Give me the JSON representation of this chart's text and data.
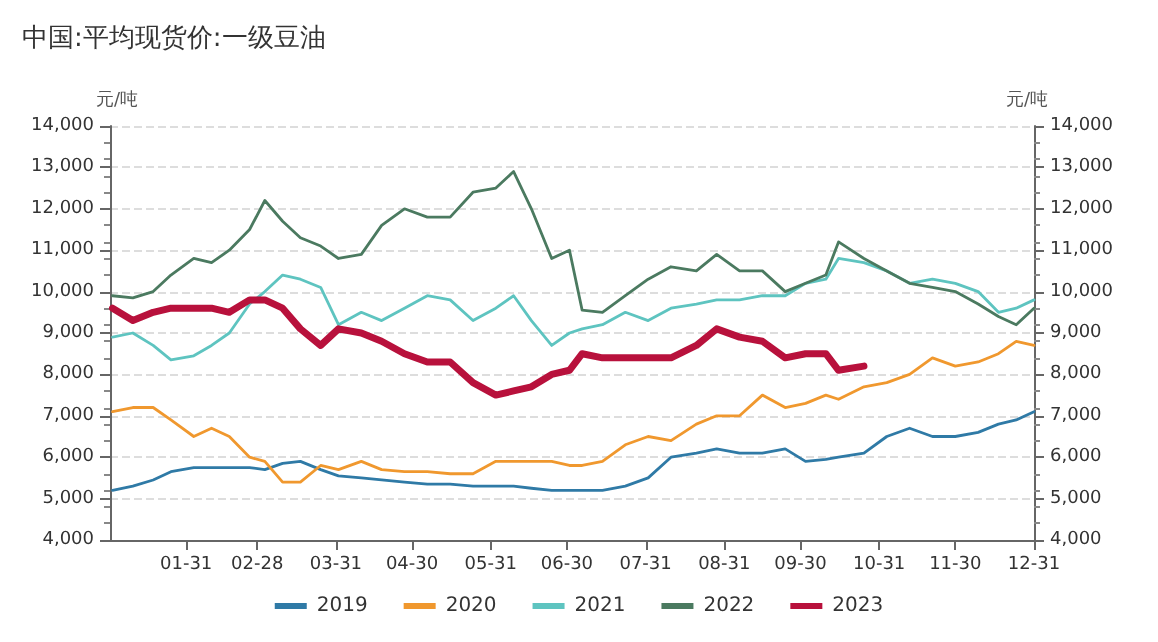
{
  "chart_data": {
    "type": "line",
    "title": "中国:平均现货价:一级豆油",
    "ylabel": "元/吨",
    "y2label": "元/吨",
    "x": [
      "--01-02",
      "--01-10",
      "--01-18",
      "--01-25",
      "--02-03",
      "--02-10",
      "--02-17",
      "--02-25",
      "--03-03",
      "--03-10",
      "--03-17",
      "--03-25",
      "--04-01",
      "--04-10",
      "--04-18",
      "--04-27",
      "--05-06",
      "--05-15",
      "--05-24",
      "--06-02",
      "--06-09",
      "--06-16",
      "--06-24",
      "--07-01",
      "--07-06",
      "--07-14",
      "--07-23",
      "--08-01",
      "--08-10",
      "--08-20",
      "--08-28",
      "--09-06",
      "--09-15",
      "--09-24",
      "--10-02",
      "--10-10",
      "--10-15",
      "--10-25",
      "--11-03",
      "--11-12",
      "--11-21",
      "--11-30",
      "--12-09",
      "--12-17",
      "--12-24",
      "--12-31"
    ],
    "series": [
      {
        "name": "2019",
        "color": "#2f7aa6",
        "values": [
          5200,
          5300,
          5450,
          5650,
          5750,
          5750,
          5750,
          5750,
          5700,
          5850,
          5900,
          5700,
          5550,
          5500,
          5450,
          5400,
          5350,
          5350,
          5300,
          5300,
          5300,
          5250,
          5200,
          5200,
          5200,
          5200,
          5300,
          5500,
          6000,
          6100,
          6200,
          6100,
          6100,
          6200,
          5900,
          5950,
          6000,
          6100,
          6500,
          6700,
          6500,
          6500,
          6600,
          6800,
          6900,
          7100
        ]
      },
      {
        "name": "2020",
        "color": "#f0982e",
        "values": [
          7100,
          7200,
          7200,
          6900,
          6500,
          6700,
          6500,
          6000,
          5900,
          5400,
          5400,
          5800,
          5700,
          5900,
          5700,
          5650,
          5650,
          5600,
          5600,
          5900,
          5900,
          5900,
          5900,
          5800,
          5800,
          5900,
          6300,
          6500,
          6400,
          6800,
          7000,
          7000,
          7500,
          7200,
          7300,
          7500,
          7400,
          7700,
          7800,
          8000,
          8400,
          8200,
          8300,
          8500,
          8800,
          8700
        ]
      },
      {
        "name": "2021",
        "color": "#5ec4c0",
        "values": [
          8900,
          9000,
          8700,
          8350,
          8450,
          8700,
          9000,
          9700,
          10000,
          10400,
          10300,
          10100,
          9200,
          9500,
          9300,
          9600,
          9900,
          9800,
          9300,
          9600,
          9900,
          9300,
          8700,
          9000,
          9100,
          9200,
          9500,
          9300,
          9600,
          9700,
          9800,
          9800,
          9900,
          9900,
          10200,
          10300,
          10800,
          10700,
          10500,
          10200,
          10300,
          10200,
          10000,
          9500,
          9600,
          9800
        ]
      },
      {
        "name": "2022",
        "color": "#4b7a60",
        "values": [
          9900,
          9850,
          10000,
          10400,
          10800,
          10700,
          11000,
          11500,
          12200,
          11700,
          11300,
          11100,
          10800,
          10900,
          11600,
          12000,
          11800,
          11800,
          12400,
          12500,
          12900,
          12000,
          10800,
          11000,
          9550,
          9500,
          9900,
          10300,
          10600,
          10500,
          10900,
          10500,
          10500,
          10000,
          10200,
          10400,
          11200,
          10800,
          10500,
          10200,
          10100,
          10000,
          9700,
          9400,
          9200,
          9600
        ]
      },
      {
        "name": "2023",
        "color": "#b8113c",
        "x": [
          "--01-02",
          "--01-10",
          "--01-18",
          "--01-25",
          "--02-03",
          "--02-10",
          "--02-17",
          "--02-25",
          "--03-03",
          "--03-10",
          "--03-17",
          "--03-25",
          "--04-01",
          "--04-10",
          "--04-18",
          "--04-27",
          "--05-06",
          "--05-15",
          "--05-24",
          "--06-02",
          "--06-09",
          "--06-16",
          "--06-24",
          "--07-01",
          "--07-06",
          "--07-14",
          "--07-23",
          "--08-01",
          "--08-10",
          "--08-20",
          "--08-28",
          "--09-06",
          "--09-15",
          "--09-24",
          "--10-02",
          "--10-10",
          "--10-15",
          "--10-25"
        ],
        "values": [
          9600,
          9300,
          9500,
          9600,
          9600,
          9600,
          9500,
          9800,
          9800,
          9600,
          9100,
          8700,
          9100,
          9000,
          8800,
          8500,
          8300,
          8300,
          7800,
          7500,
          7600,
          7700,
          8000,
          8100,
          8500,
          8400,
          8400,
          8400,
          8400,
          8700,
          9100,
          8900,
          8800,
          8400,
          8500,
          8500,
          8100,
          8200
        ]
      }
    ],
    "xlim": [
      "--01-01",
      "--12-31"
    ],
    "xticks": [
      {
        "value": "--01-31",
        "label": "01-31"
      },
      {
        "value": "--02-28",
        "label": "02-28"
      },
      {
        "value": "--03-31",
        "label": "03-31"
      },
      {
        "value": "--04-30",
        "label": "04-30"
      },
      {
        "value": "--05-31",
        "label": "05-31"
      },
      {
        "value": "--06-30",
        "label": "06-30"
      },
      {
        "value": "--07-31",
        "label": "07-31"
      },
      {
        "value": "--08-31",
        "label": "08-31"
      },
      {
        "value": "--09-30",
        "label": "09-30"
      },
      {
        "value": "--10-31",
        "label": "10-31"
      },
      {
        "value": "--11-30",
        "label": "11-30"
      },
      {
        "value": "--12-31",
        "label": "12-31"
      }
    ],
    "ylim": [
      4000,
      14000
    ],
    "yticks": [
      {
        "value": 4000,
        "label": "4,000"
      },
      {
        "value": 5000,
        "label": "5,000"
      },
      {
        "value": 6000,
        "label": "6,000"
      },
      {
        "value": 7000,
        "label": "7,000"
      },
      {
        "value": 8000,
        "label": "8,000"
      },
      {
        "value": 9000,
        "label": "9,000"
      },
      {
        "value": 10000,
        "label": "10,000"
      },
      {
        "value": 11000,
        "label": "11,000"
      },
      {
        "value": 12000,
        "label": "12,000"
      },
      {
        "value": 13000,
        "label": "13,000"
      },
      {
        "value": 14000,
        "label": "14,000"
      }
    ],
    "y2lim": [
      4000,
      14000
    ],
    "y2ticks": [
      {
        "value": 4000,
        "label": "4,000"
      },
      {
        "value": 5000,
        "label": "5,000"
      },
      {
        "value": 6000,
        "label": "6,000"
      },
      {
        "value": 7000,
        "label": "7,000"
      },
      {
        "value": 8000,
        "label": "8,000"
      },
      {
        "value": 9000,
        "label": "9,000"
      },
      {
        "value": 10000,
        "label": "10,000"
      },
      {
        "value": 11000,
        "label": "11,000"
      },
      {
        "value": 12000,
        "label": "12,000"
      },
      {
        "value": 13000,
        "label": "13,000"
      },
      {
        "value": 14000,
        "label": "14,000"
      }
    ],
    "grid": "y",
    "legend": "bottom",
    "marker": "none",
    "line_style": "solid"
  }
}
